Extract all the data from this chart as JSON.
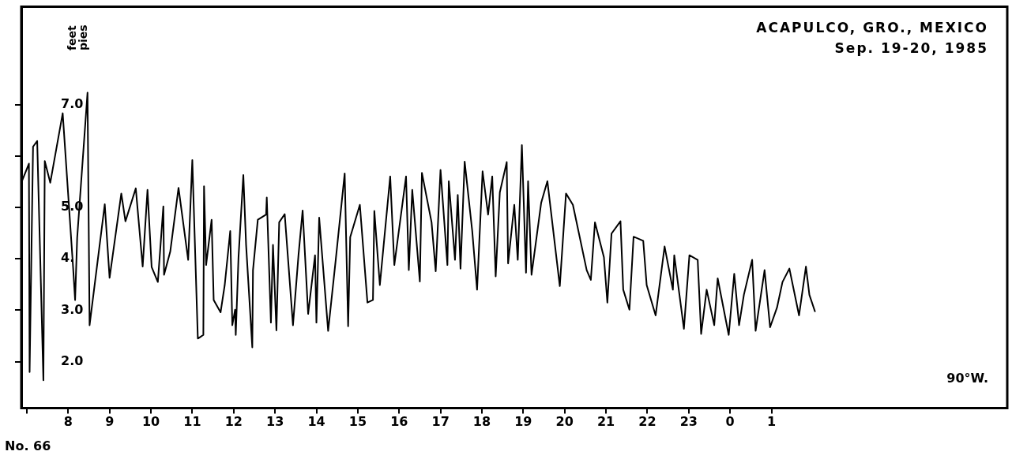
{
  "chart_data": {
    "type": "line",
    "title": "ACAPULCO, GRO., MEXICO",
    "subtitle": "Sep. 19-20, 1985",
    "ylabel": "feet pies",
    "annotations": [
      "90°W.",
      "No. 66"
    ],
    "xlim": [
      "1985-09-19T06:52",
      "1985-09-20T06:42"
    ],
    "xticks": [
      {
        "value": "1985-09-19T07:00",
        "label": null
      },
      {
        "value": "1985-09-19T08:00",
        "label": "8"
      },
      {
        "value": "1985-09-19T09:00",
        "label": "9"
      },
      {
        "value": "1985-09-19T10:00",
        "label": "10"
      },
      {
        "value": "1985-09-19T11:00",
        "label": "11"
      },
      {
        "value": "1985-09-19T12:00",
        "label": "12"
      },
      {
        "value": "1985-09-19T13:00",
        "label": "13"
      },
      {
        "value": "1985-09-19T14:00",
        "label": "14"
      },
      {
        "value": "1985-09-19T15:00",
        "label": "15"
      },
      {
        "value": "1985-09-19T16:00",
        "label": "16"
      },
      {
        "value": "1985-09-19T17:00",
        "label": "17"
      },
      {
        "value": "1985-09-19T18:00",
        "label": "18"
      },
      {
        "value": "1985-09-19T19:00",
        "label": "19"
      },
      {
        "value": "1985-09-19T20:00",
        "label": "20"
      },
      {
        "value": "1985-09-19T21:00",
        "label": "21"
      },
      {
        "value": "1985-09-19T22:00",
        "label": "22"
      },
      {
        "value": "1985-09-19T23:00",
        "label": "23"
      },
      {
        "value": "1985-09-20T00:00",
        "label": "0"
      },
      {
        "value": "1985-09-20T01:00",
        "label": "1"
      }
    ],
    "ylim": [
      1.1,
      8.9
    ],
    "yticks": [
      {
        "value": 2,
        "label": "2.0"
      },
      {
        "value": 3,
        "label": "3.0"
      },
      {
        "value": 4,
        "label": "4."
      },
      {
        "value": 5,
        "label": "5.0"
      },
      {
        "value": 6,
        "label": null
      },
      {
        "value": 7,
        "label": "7.0"
      }
    ],
    "grid": false,
    "marker": "none",
    "line_style": "solid",
    "series": [
      {
        "color": "#000000",
        "x": [
          "1985-09-19T06:52",
          "1985-09-19T07:03",
          "1985-09-19T07:04",
          "1985-09-19T07:09",
          "1985-09-19T07:15",
          "1985-09-19T07:24",
          "1985-09-19T07:26",
          "1985-09-19T07:34",
          "1985-09-19T07:52",
          "1985-09-19T08:07",
          "1985-09-19T08:10",
          "1985-09-19T08:13",
          "1985-09-19T08:28",
          "1985-09-19T08:31",
          "1985-09-19T08:53",
          "1985-09-19T09:00",
          "1985-09-19T09:17",
          "1985-09-19T09:23",
          "1985-09-19T09:38",
          "1985-09-19T09:48",
          "1985-09-19T09:55",
          "1985-09-19T10:01",
          "1985-09-19T10:10",
          "1985-09-19T10:18",
          "1985-09-19T10:19",
          "1985-09-19T10:28",
          "1985-09-19T10:40",
          "1985-09-19T10:54",
          "1985-09-19T11:00",
          "1985-09-19T11:08",
          "1985-09-19T11:16",
          "1985-09-19T11:17",
          "1985-09-19T11:20",
          "1985-09-19T11:28",
          "1985-09-19T11:31",
          "1985-09-19T11:41",
          "1985-09-19T11:47",
          "1985-09-19T11:55",
          "1985-09-19T11:58",
          "1985-09-19T12:02",
          "1985-09-19T12:03",
          "1985-09-19T12:07",
          "1985-09-19T12:14",
          "1985-09-19T12:18",
          "1985-09-19T12:27",
          "1985-09-19T12:28",
          "1985-09-19T12:35",
          "1985-09-19T12:47",
          "1985-09-19T12:48",
          "1985-09-19T12:54",
          "1985-09-19T12:57",
          "1985-09-19T13:02",
          "1985-09-19T13:06",
          "1985-09-19T13:14",
          "1985-09-19T13:26",
          "1985-09-19T13:34",
          "1985-09-19T13:40",
          "1985-09-19T13:48",
          "1985-09-19T13:58",
          "1985-09-19T14:00",
          "1985-09-19T14:04",
          "1985-09-19T14:17",
          "1985-09-19T14:28",
          "1985-09-19T14:41",
          "1985-09-19T14:46",
          "1985-09-19T14:49",
          "1985-09-19T15:03",
          "1985-09-19T15:14",
          "1985-09-19T15:22",
          "1985-09-19T15:24",
          "1985-09-19T15:32",
          "1985-09-19T15:47",
          "1985-09-19T15:53",
          "1985-09-19T16:10",
          "1985-09-19T16:14",
          "1985-09-19T16:19",
          "1985-09-19T16:30",
          "1985-09-19T16:33",
          "1985-09-19T16:47",
          "1985-09-19T16:53",
          "1985-09-19T17:00",
          "1985-09-19T17:10",
          "1985-09-19T17:12",
          "1985-09-19T17:21",
          "1985-09-19T17:25",
          "1985-09-19T17:29",
          "1985-09-19T17:35",
          "1985-09-19T17:46",
          "1985-09-19T17:53",
          "1985-09-19T18:01",
          "1985-09-19T18:09",
          "1985-09-19T18:15",
          "1985-09-19T18:20",
          "1985-09-19T18:26",
          "1985-09-19T18:36",
          "1985-09-19T18:38",
          "1985-09-19T18:47",
          "1985-09-19T18:52",
          "1985-09-19T18:58",
          "1985-09-19T19:04",
          "1985-09-19T19:07",
          "1985-09-19T19:12",
          "1985-09-19T19:26",
          "1985-09-19T19:35",
          "1985-09-19T19:53",
          "1985-09-19T20:02",
          "1985-09-19T20:12",
          "1985-09-19T20:32",
          "1985-09-19T20:38",
          "1985-09-19T20:44",
          "1985-09-19T20:57",
          "1985-09-19T21:02",
          "1985-09-19T21:08",
          "1985-09-19T21:21",
          "1985-09-19T21:25",
          "1985-09-19T21:34",
          "1985-09-19T21:40",
          "1985-09-19T21:54",
          "1985-09-19T21:59",
          "1985-09-19T22:12",
          "1985-09-19T22:25",
          "1985-09-19T22:37",
          "1985-09-19T22:39",
          "1985-09-19T22:53",
          "1985-09-19T23:01",
          "1985-09-19T23:13",
          "1985-09-19T23:18",
          "1985-09-19T23:26",
          "1985-09-19T23:37",
          "1985-09-19T23:42",
          "1985-09-19T23:58",
          "1985-09-20T00:06",
          "1985-09-20T00:13",
          "1985-09-20T00:20",
          "1985-09-20T00:32",
          "1985-09-20T00:37",
          "1985-09-20T00:50",
          "1985-09-20T00:58",
          "1985-09-20T01:08",
          "1985-09-20T01:16",
          "1985-09-20T01:26",
          "1985-09-20T01:40",
          "1985-09-20T01:50",
          "1985-09-20T01:55",
          "1985-09-20T02:03"
        ],
        "values": [
          5.48,
          5.85,
          1.8,
          6.18,
          6.29,
          1.64,
          5.9,
          5.48,
          6.83,
          3.85,
          3.2,
          4.41,
          7.23,
          2.71,
          5.06,
          3.63,
          5.27,
          4.73,
          5.37,
          3.85,
          5.34,
          3.84,
          3.55,
          5.02,
          3.69,
          4.14,
          5.38,
          3.98,
          5.92,
          2.45,
          2.52,
          5.41,
          3.88,
          4.76,
          3.2,
          2.96,
          3.49,
          4.54,
          2.71,
          3.01,
          2.52,
          4.03,
          5.63,
          4.27,
          2.28,
          3.78,
          4.76,
          4.86,
          5.19,
          2.76,
          4.27,
          2.61,
          4.71,
          4.87,
          2.71,
          4.07,
          4.94,
          2.93,
          4.07,
          2.76,
          4.8,
          2.6,
          3.98,
          5.66,
          2.69,
          4.42,
          5.05,
          3.15,
          3.2,
          4.93,
          3.49,
          5.6,
          3.88,
          5.6,
          3.78,
          5.34,
          3.56,
          5.67,
          4.71,
          3.76,
          5.73,
          3.88,
          5.51,
          3.98,
          5.24,
          3.81,
          5.89,
          4.54,
          3.4,
          5.7,
          4.86,
          5.6,
          3.66,
          5.29,
          5.88,
          3.91,
          5.05,
          3.98,
          6.21,
          3.73,
          5.51,
          3.69,
          5.09,
          5.51,
          3.47,
          5.27,
          5.05,
          3.78,
          3.59,
          4.71,
          4.03,
          3.15,
          4.49,
          4.73,
          3.4,
          3.01,
          4.43,
          4.35,
          3.49,
          2.9,
          4.24,
          3.4,
          4.07,
          2.64,
          4.07,
          3.98,
          2.54,
          3.4,
          2.71,
          3.62,
          2.52,
          3.71,
          2.71,
          3.3,
          3.98,
          2.6,
          3.78,
          2.67,
          3.05,
          3.55,
          3.81,
          2.9,
          3.85,
          3.3,
          2.98
        ]
      }
    ]
  }
}
